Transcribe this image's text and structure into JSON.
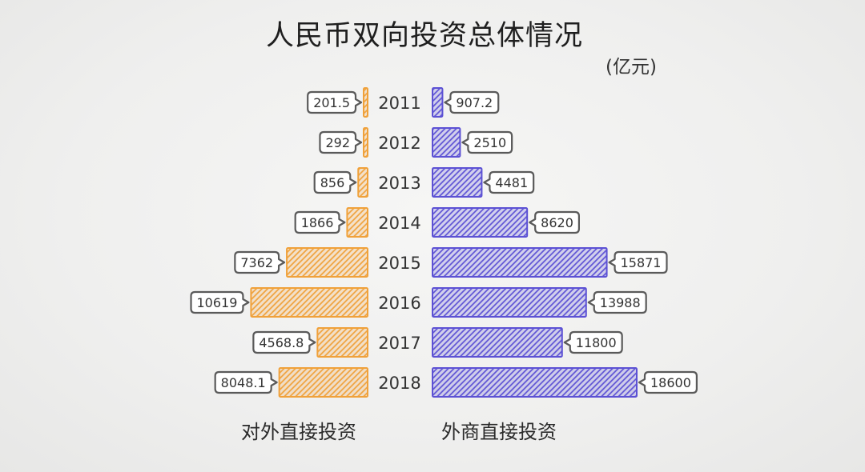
{
  "chart_data": {
    "type": "bar",
    "orientation": "horizontal",
    "diverging": true,
    "title": "人民币双向投资总体情况",
    "unit": "(亿元)",
    "categories": [
      "2011",
      "2012",
      "2013",
      "2014",
      "2015",
      "2016",
      "2017",
      "2018"
    ],
    "series": [
      {
        "name": "对外直接投资",
        "color": "#f0a13a",
        "values": [
          201.5,
          292,
          856,
          1866,
          7362,
          10619,
          4568.8,
          8048.1
        ]
      },
      {
        "name": "外商直接投资",
        "color": "#5c51d4",
        "values": [
          907.2,
          2510,
          4481,
          8620,
          15871,
          13988,
          11800,
          18600
        ]
      }
    ],
    "grid": false,
    "legend": "bottom"
  }
}
